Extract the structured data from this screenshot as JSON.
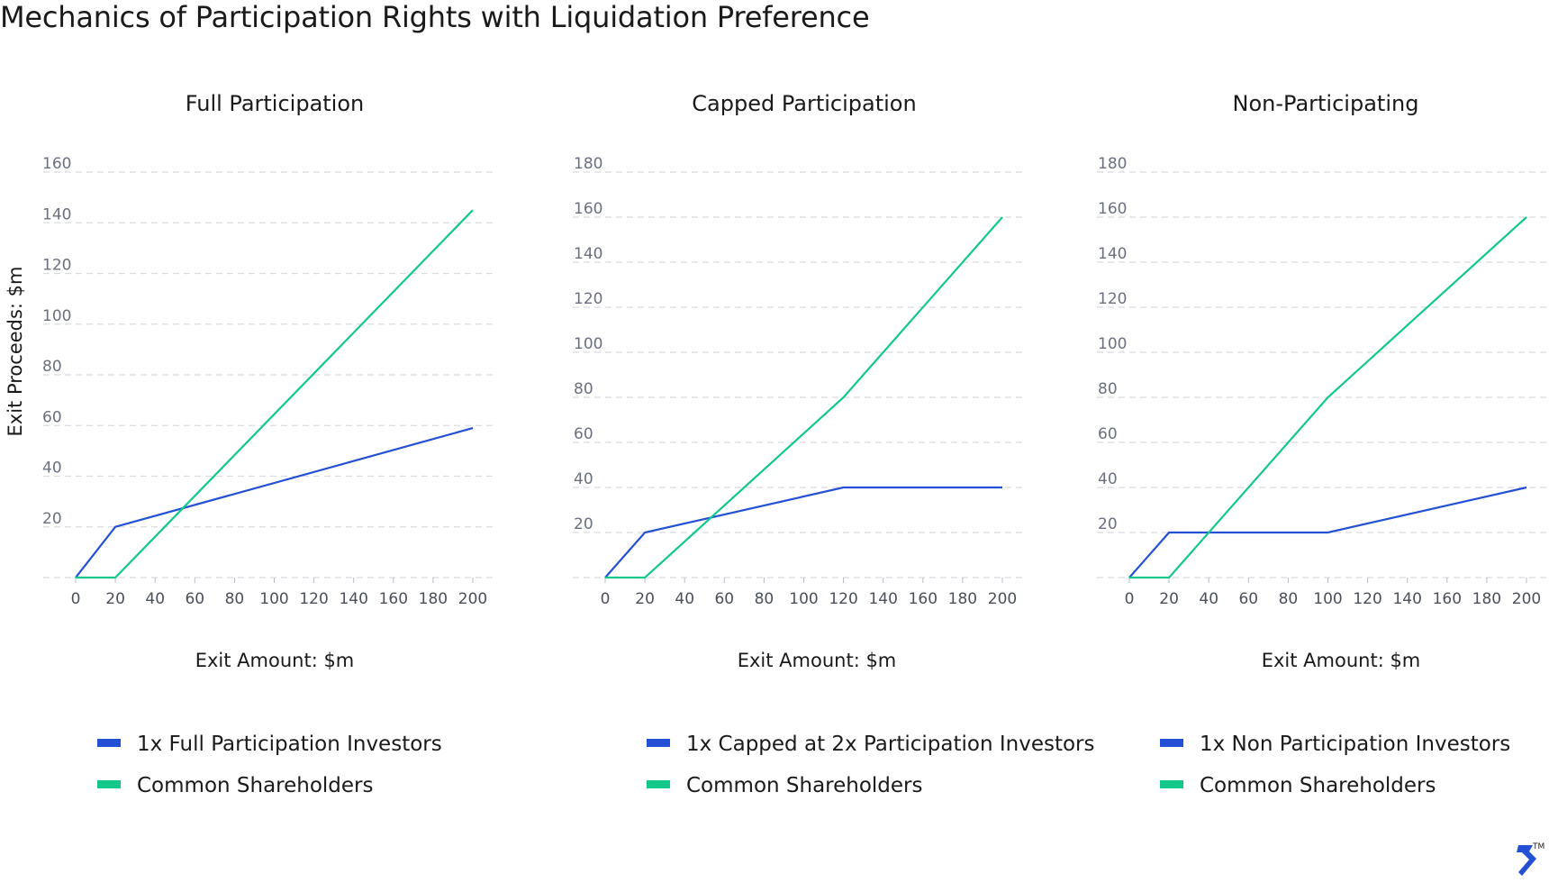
{
  "title": "Mechanics of Participation Rights with Liquidation Preference",
  "ylabel": "Exit Proceeds: $m",
  "colors": {
    "investors": "#2450d6",
    "common": "#12c98a",
    "grid": "#d9dbe0"
  },
  "logo": {
    "icon": "toptal-logo-icon",
    "trademark": "TM"
  },
  "chart_data": [
    {
      "type": "line",
      "title": "Full Participation",
      "xlabel": "Exit Amount: $m",
      "xticks": [
        0,
        20,
        40,
        60,
        80,
        100,
        120,
        140,
        160,
        180,
        200
      ],
      "yticks": [
        20,
        40,
        60,
        80,
        100,
        120,
        140,
        160
      ],
      "xlim": [
        0,
        200
      ],
      "ylim": [
        0,
        160
      ],
      "grid": true,
      "legend_position": "bottom",
      "series": [
        {
          "name": "1x Full Participation Investors",
          "color": "#2450d6",
          "x": [
            0,
            20,
            200
          ],
          "y": [
            0,
            20,
            59
          ]
        },
        {
          "name": "Common Shareholders",
          "color": "#12c98a",
          "x": [
            0,
            20,
            200
          ],
          "y": [
            0,
            0,
            145
          ]
        }
      ]
    },
    {
      "type": "line",
      "title": "Capped Participation",
      "xlabel": "Exit Amount: $m",
      "xticks": [
        0,
        20,
        40,
        60,
        80,
        100,
        120,
        140,
        160,
        180,
        200
      ],
      "yticks": [
        20,
        40,
        60,
        80,
        100,
        120,
        140,
        160,
        180
      ],
      "xlim": [
        0,
        200
      ],
      "ylim": [
        0,
        180
      ],
      "grid": true,
      "legend_position": "bottom",
      "series": [
        {
          "name": "1x Capped at 2x Participation Investors",
          "color": "#2450d6",
          "x": [
            0,
            20,
            120,
            200
          ],
          "y": [
            0,
            20,
            40,
            40
          ]
        },
        {
          "name": "Common Shareholders",
          "color": "#12c98a",
          "x": [
            0,
            20,
            120,
            200
          ],
          "y": [
            0,
            0,
            80,
            160
          ]
        }
      ]
    },
    {
      "type": "line",
      "title": "Non-Participating",
      "xlabel": "Exit Amount: $m",
      "xticks": [
        0,
        20,
        40,
        60,
        80,
        100,
        120,
        140,
        160,
        180,
        200
      ],
      "yticks": [
        20,
        40,
        60,
        80,
        100,
        120,
        140,
        160,
        180
      ],
      "xlim": [
        0,
        200
      ],
      "ylim": [
        0,
        180
      ],
      "grid": true,
      "legend_position": "bottom",
      "series": [
        {
          "name": "1x Non Participation Investors",
          "color": "#2450d6",
          "x": [
            0,
            20,
            100,
            200
          ],
          "y": [
            0,
            20,
            20,
            40
          ]
        },
        {
          "name": "Common Shareholders",
          "color": "#12c98a",
          "x": [
            0,
            20,
            100,
            200
          ],
          "y": [
            0,
            0,
            80,
            160
          ]
        }
      ]
    }
  ]
}
